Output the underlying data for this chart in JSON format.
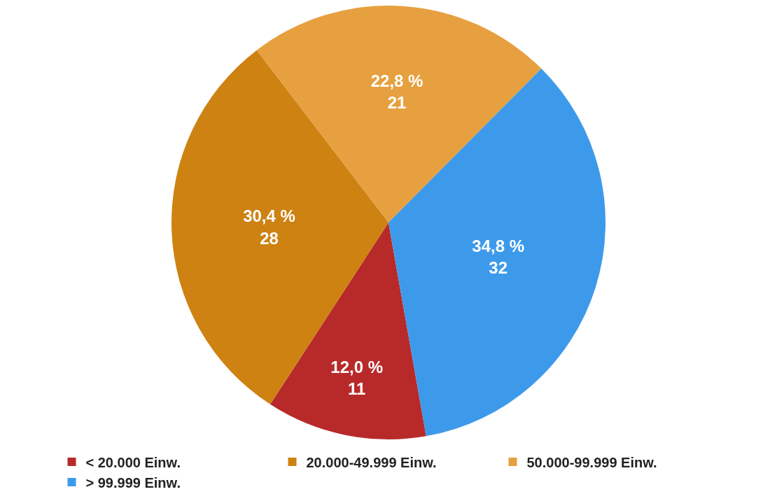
{
  "chart_data": {
    "type": "pie",
    "categories": [
      "< 20.000 Einw.",
      "20.000-49.999 Einw.",
      "50.000-99.999 Einw.",
      "> 99.999 Einw."
    ],
    "values": [
      11,
      28,
      21,
      32
    ],
    "colors": [
      "#b82a2a",
      "#cd8212",
      "#e7a03f",
      "#3d9aea"
    ],
    "value_labels": [
      "12,0 %\n11",
      "30,4 %\n28",
      "22,8 %\n21",
      "34,8 %\n32"
    ],
    "legend": "bottom"
  }
}
